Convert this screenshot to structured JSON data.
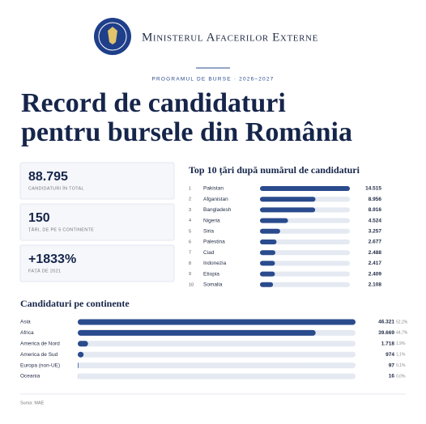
{
  "header": {
    "ministry": "Ministerul Afacerilor Externe",
    "kicker": "PROGRAMUL DE BURSE · 2026–2027",
    "title_line1": "Record de candidaturi",
    "title_line2": "pentru bursele din România"
  },
  "stats": [
    {
      "value": "88.795",
      "label": "CANDIDATURI ÎN TOTAL"
    },
    {
      "value": "150",
      "label": "ȚĂRI, DE PE 5 CONTINENTE"
    },
    {
      "value": "+1833%",
      "label": "FAȚĂ DE 2021"
    }
  ],
  "chart_data": [
    {
      "type": "bar",
      "horizontal": true,
      "title": "Top 10 țări după numărul de candidaturi",
      "ranks": [
        "1",
        "2",
        "3",
        "4",
        "5",
        "6",
        "7",
        "8",
        "9",
        "10"
      ],
      "categories": [
        "Pakistan",
        "Afganistan",
        "Bangladesh",
        "Nigeria",
        "Siria",
        "Palestina",
        "Ciad",
        "Indonezia",
        "Etiopia",
        "Somalia"
      ],
      "values": [
        14515,
        8956,
        8916,
        4524,
        3257,
        2677,
        2488,
        2417,
        2409,
        2108
      ],
      "value_labels": [
        "14.515",
        "8.956",
        "8.916",
        "4.524",
        "3.257",
        "2.677",
        "2.488",
        "2.417",
        "2.409",
        "2.108"
      ],
      "xlim": [
        0,
        14515
      ],
      "color": "#2a4b8d",
      "track_color": "#e4e9f2"
    },
    {
      "type": "bar",
      "horizontal": true,
      "title": "Candidaturi pe continente",
      "categories": [
        "Asia",
        "Africa",
        "America de Nord",
        "America de Sud",
        "Europa (non-UE)",
        "Oceania"
      ],
      "values": [
        46321,
        39669,
        1718,
        974,
        97,
        16
      ],
      "value_labels": [
        "46.321",
        "39.669",
        "1.718",
        "974",
        "97",
        "16"
      ],
      "share_labels": [
        "52,2%",
        "44,7%",
        "1,9%",
        "1,1%",
        "0,1%",
        "0,0%"
      ],
      "xlim": [
        0,
        46321
      ],
      "color": "#2a4b8d",
      "track_color": "#e4e9f2"
    }
  ],
  "footer": {
    "source": "Sursa: MAE"
  }
}
